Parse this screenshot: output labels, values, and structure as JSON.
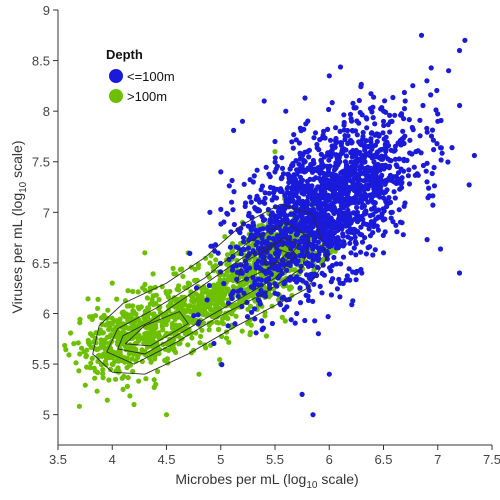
{
  "chart_data": {
    "type": "scatter",
    "xlabel_prefix": "Microbes per mL (log",
    "xlabel_sub": "10",
    "xlabel_suffix": " scale)",
    "ylabel_prefix": "Viruses per mL (log",
    "ylabel_sub": "10",
    "ylabel_suffix": " scale)",
    "xlim": [
      3.5,
      7.5
    ],
    "ylim": [
      4.7,
      9
    ],
    "xticks": [
      "3.5",
      "4",
      "4.5",
      "5",
      "5.5",
      "6",
      "6.5",
      "7",
      "7.5"
    ],
    "yticks": [
      "5",
      "5.5",
      "6",
      "6.5",
      "7",
      "7.5",
      "8",
      "8.5",
      "9"
    ],
    "grid": false,
    "legend_position": "top-left",
    "legend_title": "Depth",
    "series": [
      {
        "name": "<=100m",
        "color": "#1a1adb",
        "points": [
          [
            5.1,
            7.1
          ],
          [
            5.3,
            7.3
          ],
          [
            5.5,
            7.7
          ],
          [
            5.6,
            8.0
          ],
          [
            5.7,
            7.2
          ],
          [
            5.8,
            7.6
          ],
          [
            5.9,
            6.9
          ],
          [
            6.0,
            7.3
          ],
          [
            6.1,
            7.8
          ],
          [
            6.2,
            7.1
          ],
          [
            6.3,
            7.5
          ],
          [
            6.4,
            6.8
          ],
          [
            6.5,
            7.9
          ],
          [
            6.6,
            7.3
          ],
          [
            6.7,
            8.1
          ],
          [
            6.8,
            7.6
          ],
          [
            6.9,
            8.3
          ],
          [
            7.0,
            7.9
          ],
          [
            7.1,
            8.4
          ],
          [
            7.2,
            8.6
          ],
          [
            6.0,
            8.35
          ],
          [
            6.85,
            8.75
          ],
          [
            7.25,
            8.7
          ],
          [
            5.5,
            6.2
          ],
          [
            5.7,
            6.0
          ],
          [
            5.9,
            5.8
          ],
          [
            6.0,
            5.4
          ],
          [
            5.75,
            5.2
          ],
          [
            5.85,
            5.0
          ],
          [
            6.1,
            6.3
          ],
          [
            6.3,
            6.4
          ],
          [
            6.5,
            6.6
          ],
          [
            7.2,
            6.4
          ],
          [
            5.2,
            7.9
          ],
          [
            5.4,
            8.1
          ],
          [
            5.0,
            7.4
          ],
          [
            4.9,
            7.0
          ],
          [
            5.6,
            6.8
          ],
          [
            5.8,
            6.5
          ],
          [
            6.2,
            6.6
          ]
        ],
        "cluster_center": [
          5.95,
          7.05
        ],
        "cluster_spread": [
          0.42,
          0.48
        ]
      },
      {
        "name": ">100m",
        "color": "#6cc000",
        "points": [
          [
            3.7,
            5.6
          ],
          [
            3.8,
            5.8
          ],
          [
            3.9,
            5.7
          ],
          [
            4.0,
            5.5
          ],
          [
            4.0,
            5.9
          ],
          [
            4.1,
            5.7
          ],
          [
            4.2,
            6.0
          ],
          [
            4.3,
            5.6
          ],
          [
            4.3,
            5.8
          ],
          [
            4.4,
            6.1
          ],
          [
            4.5,
            5.7
          ],
          [
            4.5,
            6.2
          ],
          [
            4.6,
            6.0
          ],
          [
            4.7,
            6.3
          ],
          [
            4.8,
            6.1
          ],
          [
            4.9,
            6.5
          ],
          [
            5.0,
            6.2
          ],
          [
            5.1,
            6.6
          ],
          [
            5.2,
            6.4
          ],
          [
            5.3,
            6.8
          ],
          [
            5.4,
            6.5
          ],
          [
            5.5,
            6.9
          ],
          [
            5.6,
            6.6
          ],
          [
            5.7,
            7.0
          ],
          [
            4.4,
            5.3
          ],
          [
            4.2,
            5.1
          ],
          [
            4.5,
            5.0
          ],
          [
            4.1,
            5.25
          ],
          [
            5.0,
            5.5
          ],
          [
            4.8,
            5.4
          ],
          [
            4.3,
            6.6
          ],
          [
            4.0,
            6.3
          ],
          [
            5.5,
            7.6
          ],
          [
            5.8,
            7.1
          ],
          [
            5.2,
            6.9
          ],
          [
            4.7,
            6.6
          ]
        ],
        "ridge": [
          [
            3.85,
            5.6
          ],
          [
            4.2,
            5.75
          ],
          [
            4.6,
            5.95
          ],
          [
            5.0,
            6.15
          ],
          [
            5.3,
            6.4
          ],
          [
            5.6,
            6.6
          ],
          [
            5.75,
            6.75
          ]
        ],
        "ridge_spread": 0.18
      }
    ],
    "contours": [
      [
        [
          3.82,
          5.6
        ],
        [
          4.0,
          5.42
        ],
        [
          4.3,
          5.4
        ],
        [
          4.7,
          5.6
        ],
        [
          5.1,
          5.85
        ],
        [
          5.45,
          6.05
        ],
        [
          5.8,
          6.25
        ],
        [
          5.98,
          6.55
        ],
        [
          5.85,
          6.98
        ],
        [
          5.55,
          7.08
        ],
        [
          5.2,
          6.88
        ],
        [
          4.85,
          6.55
        ],
        [
          4.5,
          6.3
        ],
        [
          4.1,
          6.1
        ],
        [
          3.88,
          5.88
        ]
      ],
      [
        [
          3.95,
          5.62
        ],
        [
          4.2,
          5.5
        ],
        [
          4.6,
          5.72
        ],
        [
          5.0,
          5.98
        ],
        [
          5.4,
          6.2
        ],
        [
          5.75,
          6.45
        ],
        [
          5.82,
          6.75
        ],
        [
          5.6,
          6.9
        ],
        [
          5.25,
          6.7
        ],
        [
          4.85,
          6.35
        ],
        [
          4.4,
          6.05
        ],
        [
          4.05,
          5.85
        ]
      ],
      [
        [
          4.05,
          5.65
        ],
        [
          4.3,
          5.6
        ],
        [
          4.7,
          5.85
        ],
        [
          5.1,
          6.1
        ],
        [
          5.5,
          6.35
        ],
        [
          5.7,
          6.58
        ],
        [
          5.55,
          6.72
        ],
        [
          5.2,
          6.55
        ],
        [
          4.8,
          6.25
        ],
        [
          4.35,
          5.92
        ],
        [
          4.1,
          5.78
        ]
      ],
      [
        [
          4.12,
          5.7
        ],
        [
          4.35,
          5.68
        ],
        [
          4.7,
          5.9
        ],
        [
          4.62,
          6.02
        ],
        [
          4.3,
          5.88
        ]
      ],
      [
        [
          5.15,
          6.3
        ],
        [
          5.45,
          6.45
        ],
        [
          5.62,
          6.6
        ],
        [
          5.48,
          6.66
        ],
        [
          5.2,
          6.5
        ]
      ],
      [
        [
          5.4,
          6.48
        ],
        [
          5.6,
          6.52
        ],
        [
          5.72,
          6.68
        ],
        [
          5.58,
          6.75
        ],
        [
          5.42,
          6.62
        ]
      ]
    ]
  }
}
